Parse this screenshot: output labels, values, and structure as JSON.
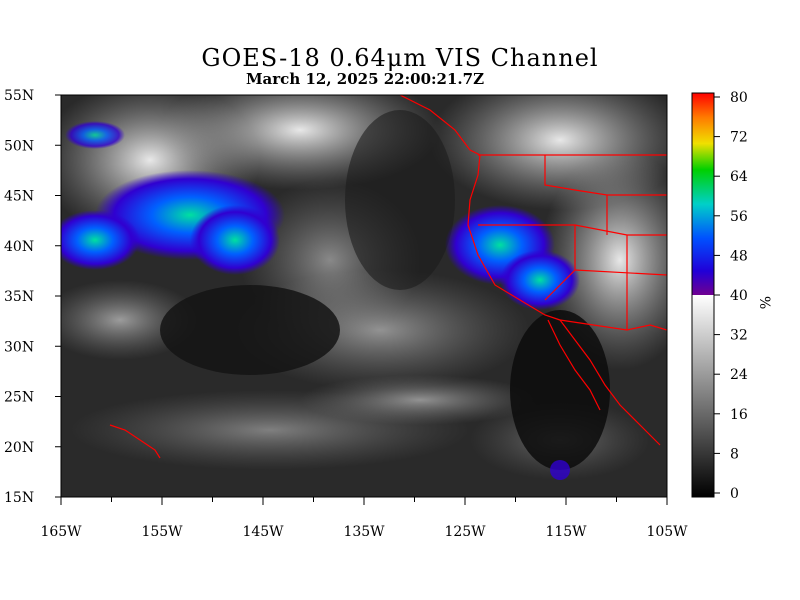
{
  "header": {
    "title": "GOES-18  0.64μm VIS Channel",
    "subtitle": "March 12,  2025 22:00:21.7Z"
  },
  "map": {
    "lon_labels": [
      "165W",
      "155W",
      "145W",
      "135W",
      "125W",
      "115W",
      "105W"
    ],
    "lat_labels": [
      "55N",
      "50N",
      "45N",
      "40N",
      "35N",
      "30N",
      "25N",
      "20N",
      "15N"
    ],
    "lon_range": [
      -165,
      -105
    ],
    "lat_range": [
      15,
      55
    ]
  },
  "colorbar": {
    "tick_labels": [
      "80",
      "72",
      "64",
      "56",
      "48",
      "40",
      "32",
      "24",
      "16",
      "8",
      "0"
    ],
    "unit": "%",
    "range": [
      0,
      80
    ],
    "color_break": 40
  },
  "colors": {
    "border_red": "#ff0000",
    "ocean_dark": "#1a1a1a",
    "cloud_white": "#e8e8e8"
  }
}
